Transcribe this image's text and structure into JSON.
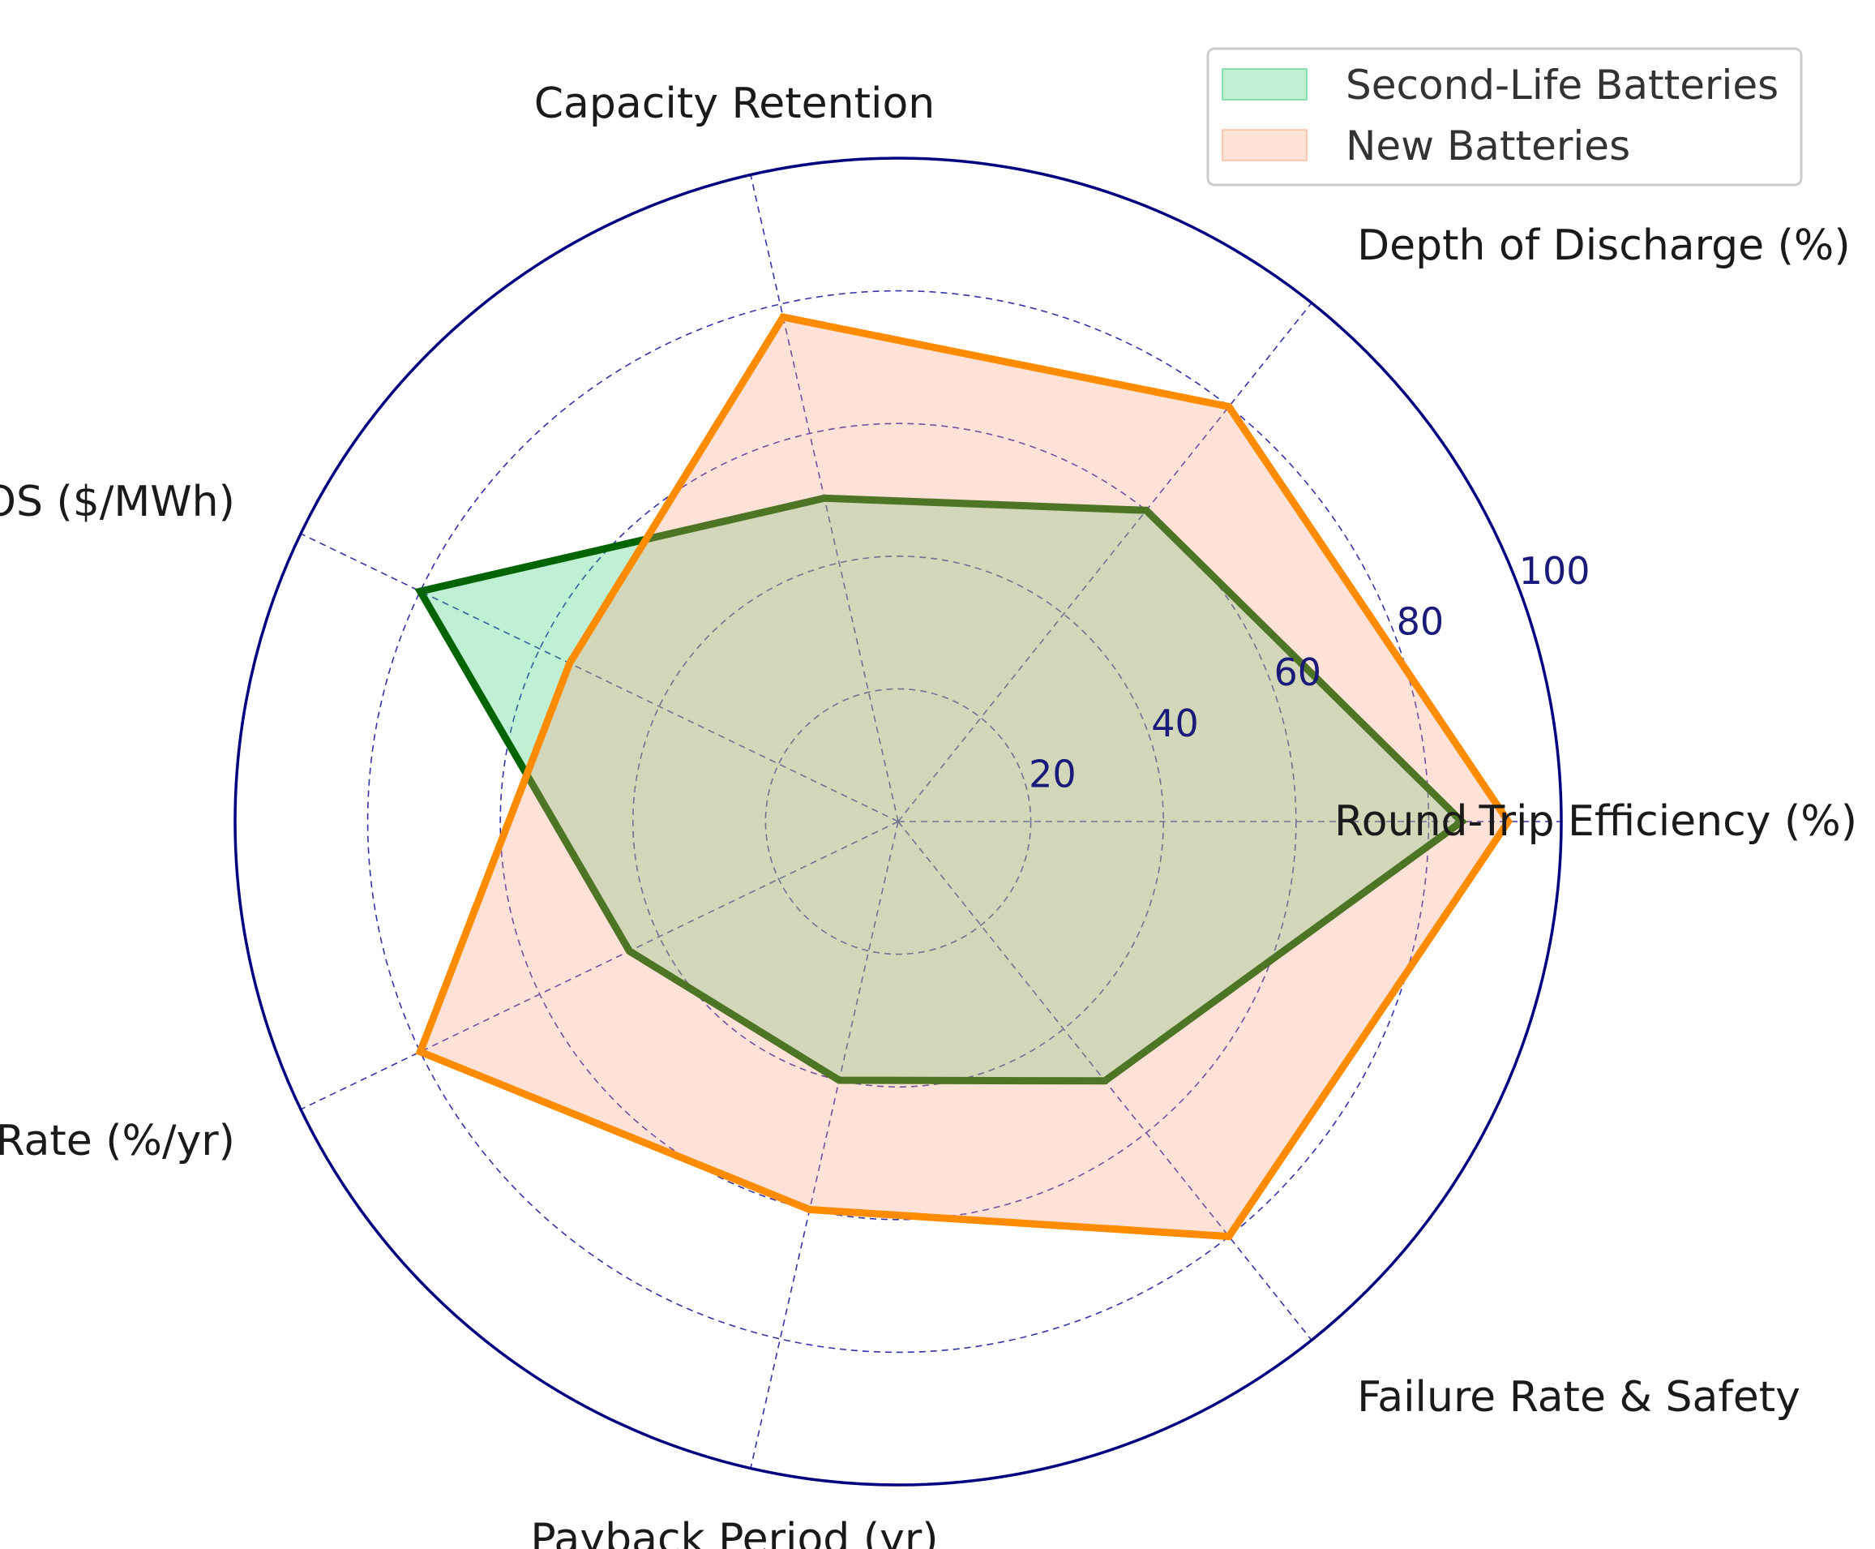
{
  "chart_data": {
    "type": "radar",
    "title": "",
    "axes": [
      "Round-Trip Efficiency (%)",
      "Depth of Discharge (%)",
      "Capacity Retention",
      "LCOS ($/MWh)",
      "Degradation Rate (%/yr)",
      "Payback Period (yr)",
      "Failure Rate & Safety"
    ],
    "r_ticks": [
      20,
      40,
      60,
      80,
      100
    ],
    "r_tick_labels": [
      "20",
      "40",
      "60",
      "80",
      "100"
    ],
    "rlim": [
      0,
      100
    ],
    "grid": true,
    "legend_position": "top-right",
    "series": [
      {
        "name": "Second-Life Batteries",
        "values": [
          85,
          60,
          50,
          80,
          45,
          40,
          50
        ],
        "line_color": "#006400",
        "fill_color": "#2ecc71"
      },
      {
        "name": "New Batteries",
        "values": [
          92,
          80,
          78,
          55,
          80,
          60,
          80
        ],
        "line_color": "#ff8c00",
        "fill_color": "#ffa07a"
      }
    ],
    "colors": {
      "outer_ring": "#000080",
      "grid": "#3333aa"
    }
  }
}
